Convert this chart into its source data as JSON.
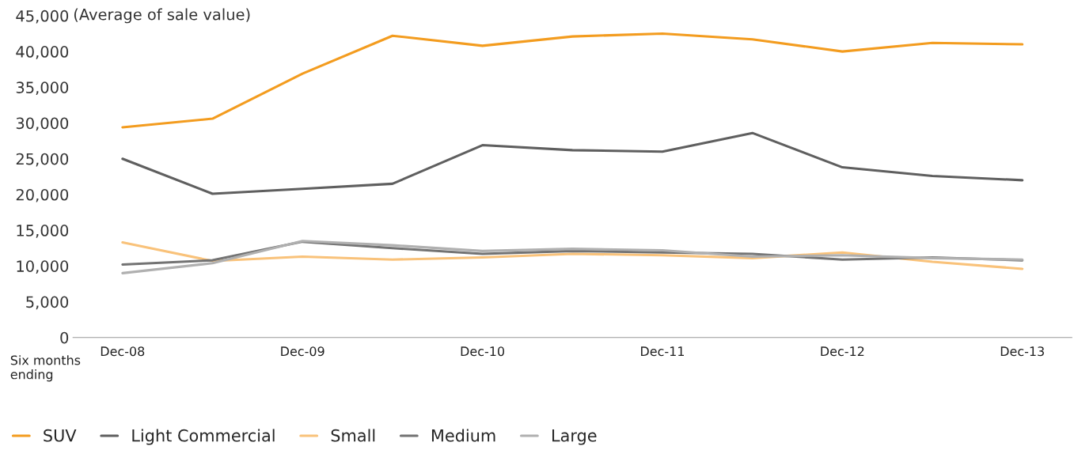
{
  "chart_data": {
    "type": "line",
    "ylabel": "(Average of sale value)",
    "xlabel": "Six months ending",
    "categories": [
      "Dec-08",
      null,
      "Dec-09",
      null,
      "Dec-10",
      null,
      "Dec-11",
      null,
      "Dec-12",
      null,
      "Dec-13"
    ],
    "series": [
      {
        "name": "SUV",
        "color": "#f39c1f",
        "values": [
          29400,
          30600,
          36900,
          42200,
          40800,
          42100,
          42500,
          41700,
          40000,
          41200,
          41000
        ]
      },
      {
        "name": "Light Commercial",
        "color": "#5f5f5f",
        "values": [
          25000,
          20100,
          20800,
          21500,
          26900,
          26200,
          26000,
          28600,
          23800,
          22600,
          22000
        ]
      },
      {
        "name": "Small",
        "color": "#f9c27a",
        "values": [
          13300,
          10700,
          11300,
          10900,
          11200,
          11700,
          11500,
          11100,
          11900,
          10600,
          9600
        ]
      },
      {
        "name": "Medium",
        "color": "#737373",
        "values": [
          10200,
          10800,
          13400,
          12500,
          11700,
          12100,
          11900,
          11700,
          10900,
          11200,
          10800
        ]
      },
      {
        "name": "Large",
        "color": "#b0b0b0",
        "values": [
          9000,
          10400,
          13500,
          12900,
          12100,
          12400,
          12200,
          11300,
          11500,
          11100,
          10900
        ]
      }
    ],
    "ylim": [
      0,
      45000
    ],
    "yticks": [
      0,
      {
        "value": 5000,
        "label": "5,000"
      },
      {
        "value": 10000,
        "label": "10,000"
      },
      {
        "value": 15000,
        "label": "15,000"
      },
      {
        "value": 20000,
        "label": "20,000"
      },
      {
        "value": 25000,
        "label": "25,000"
      },
      {
        "value": 30000,
        "label": "30,000"
      },
      {
        "value": 35000,
        "label": "35,000"
      },
      {
        "value": 40000,
        "label": "40,000"
      },
      {
        "value": 45000,
        "label": "45,000"
      }
    ],
    "grid": false,
    "legend": "bottom",
    "marker": "none",
    "line_style": "solid"
  }
}
